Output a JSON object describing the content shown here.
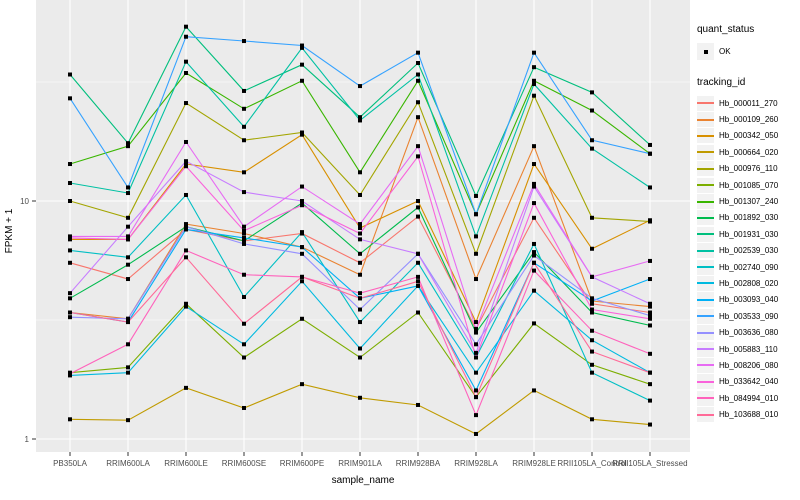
{
  "legend": {
    "quant_status_title": "quant_status",
    "quant_status_value": "OK",
    "tracking_id_title": "tracking_id"
  },
  "axes": {
    "x_title": "sample_name",
    "y_title": "FPKM + 1",
    "y_tick_labels": [
      "10",
      "1"
    ]
  },
  "colors": {
    "panel_background": "#EBEBEB",
    "gridline": "#FFFFFF",
    "legend_key_background": "#F2F2F2",
    "tick_text": "#4D4D4D",
    "marker": "#000000"
  },
  "chart_data": {
    "type": "line",
    "title": "",
    "xlabel": "sample_name",
    "ylabel": "FPKM + 1",
    "y_scale": "log10",
    "ylim": [
      0.9,
      63
    ],
    "y_major_ticks": [
      10,
      1
    ],
    "y_minor_gridlines": [
      31.623,
      3.1623
    ],
    "legend_position": "right",
    "grid": "on",
    "point_shape": "filled-black-square",
    "categories": [
      "PB350LA",
      "RRIM600LA",
      "RRIM600LE",
      "RRIM600SE",
      "RRIM600PE",
      "RRIM901LA",
      "RRIM928BA",
      "RRIM928LA",
      "RRIM928LE",
      "RRII105LA_Control",
      "RRII105LA_Stressed"
    ],
    "series": [
      {
        "name": "Hb_000011_270",
        "color": "#F8766D",
        "values": [
          5.5,
          4.7,
          7.6,
          6.8,
          7.3,
          5.5,
          8.6,
          2.9,
          8.5,
          3.7,
          3.4
        ]
      },
      {
        "name": "Hb_000109_260",
        "color": "#EA8331",
        "values": [
          3.4,
          3.2,
          8.0,
          7.3,
          6.4,
          4.9,
          22.5,
          4.7,
          17.0,
          3.8,
          3.6
        ]
      },
      {
        "name": "Hb_000342_050",
        "color": "#D89000",
        "values": [
          6.9,
          6.9,
          14.3,
          13.2,
          19.0,
          7.7,
          10.0,
          3.1,
          14.3,
          6.3,
          8.3
        ]
      },
      {
        "name": "Hb_000664_020",
        "color": "#C09B00",
        "values": [
          1.21,
          1.2,
          1.64,
          1.35,
          1.7,
          1.49,
          1.39,
          1.05,
          1.6,
          1.21,
          1.15
        ]
      },
      {
        "name": "Hb_000976_110",
        "color": "#A3A500",
        "values": [
          10.0,
          8.5,
          25.8,
          18.0,
          19.4,
          10.6,
          26.0,
          6.0,
          27.7,
          8.5,
          8.2
        ]
      },
      {
        "name": "Hb_001085_070",
        "color": "#7CAE00",
        "values": [
          1.9,
          2.0,
          3.7,
          2.2,
          3.2,
          2.2,
          3.4,
          1.5,
          3.06,
          2.05,
          1.7
        ]
      },
      {
        "name": "Hb_001307_240",
        "color": "#39B600",
        "values": [
          14.3,
          17.0,
          34.5,
          24.4,
          32.0,
          13.2,
          32.0,
          8.8,
          32.0,
          24.0,
          15.8
        ]
      },
      {
        "name": "Hb_001892_030",
        "color": "#00BB4E",
        "values": [
          3.9,
          5.4,
          7.8,
          6.8,
          9.8,
          6.0,
          9.4,
          2.8,
          6.1,
          3.4,
          3.0
        ]
      },
      {
        "name": "Hb_001931_030",
        "color": "#00BF7D",
        "values": [
          34.0,
          17.5,
          54.0,
          29.0,
          37.4,
          22.5,
          38.0,
          10.5,
          36.5,
          28.6,
          17.2
        ]
      },
      {
        "name": "Hb_002539_030",
        "color": "#00C1A3",
        "values": [
          11.9,
          10.8,
          38.5,
          20.5,
          44.0,
          21.8,
          34.0,
          7.1,
          31.0,
          16.6,
          11.4
        ]
      },
      {
        "name": "Hb_002740_090",
        "color": "#00BFC4",
        "values": [
          6.2,
          5.8,
          10.6,
          3.95,
          7.4,
          3.1,
          5.5,
          2.2,
          6.6,
          1.9,
          1.45
        ]
      },
      {
        "name": "Hb_002808_020",
        "color": "#00BAE0",
        "values": [
          1.85,
          1.9,
          3.6,
          2.5,
          4.6,
          2.4,
          4.4,
          1.9,
          4.2,
          2.6,
          1.9
        ]
      },
      {
        "name": "Hb_003093_040",
        "color": "#00B0F6",
        "values": [
          3.4,
          3.1,
          7.6,
          7.0,
          6.4,
          3.9,
          4.4,
          1.6,
          5.5,
          3.8,
          4.7
        ]
      },
      {
        "name": "Hb_003533_090",
        "color": "#35A2FF",
        "values": [
          27.0,
          11.4,
          49.0,
          47.0,
          45.0,
          30.4,
          42.0,
          8.8,
          42.0,
          18.0,
          15.8
        ]
      },
      {
        "name": "Hb_003636_080",
        "color": "#9590FF",
        "values": [
          3.25,
          3.2,
          7.8,
          6.6,
          6.0,
          3.5,
          6.0,
          2.5,
          5.9,
          3.9,
          3.3
        ]
      },
      {
        "name": "Hb_005883_110",
        "color": "#C77CFF",
        "values": [
          4.1,
          7.8,
          14.7,
          10.9,
          10.0,
          6.9,
          6.0,
          2.3,
          11.5,
          4.8,
          3.7
        ]
      },
      {
        "name": "Hb_008206_080",
        "color": "#E76BF3",
        "values": [
          7.1,
          7.1,
          17.7,
          7.8,
          11.5,
          8.0,
          17.0,
          2.9,
          11.8,
          4.8,
          5.6
        ]
      },
      {
        "name": "Hb_033642_040",
        "color": "#FA62DB",
        "values": [
          7.0,
          6.9,
          14.0,
          7.5,
          9.6,
          7.3,
          15.4,
          2.2,
          9.8,
          3.5,
          3.2
        ]
      },
      {
        "name": "Hb_084994_010",
        "color": "#FF62BC",
        "values": [
          1.88,
          2.5,
          6.2,
          4.9,
          4.8,
          4.1,
          4.8,
          1.26,
          5.1,
          2.85,
          2.28
        ]
      },
      {
        "name": "Hb_103688_010",
        "color": "#FF6A98",
        "values": [
          3.4,
          3.1,
          5.8,
          3.05,
          4.8,
          3.9,
          4.6,
          1.5,
          5.5,
          2.33,
          1.9
        ]
      }
    ]
  }
}
